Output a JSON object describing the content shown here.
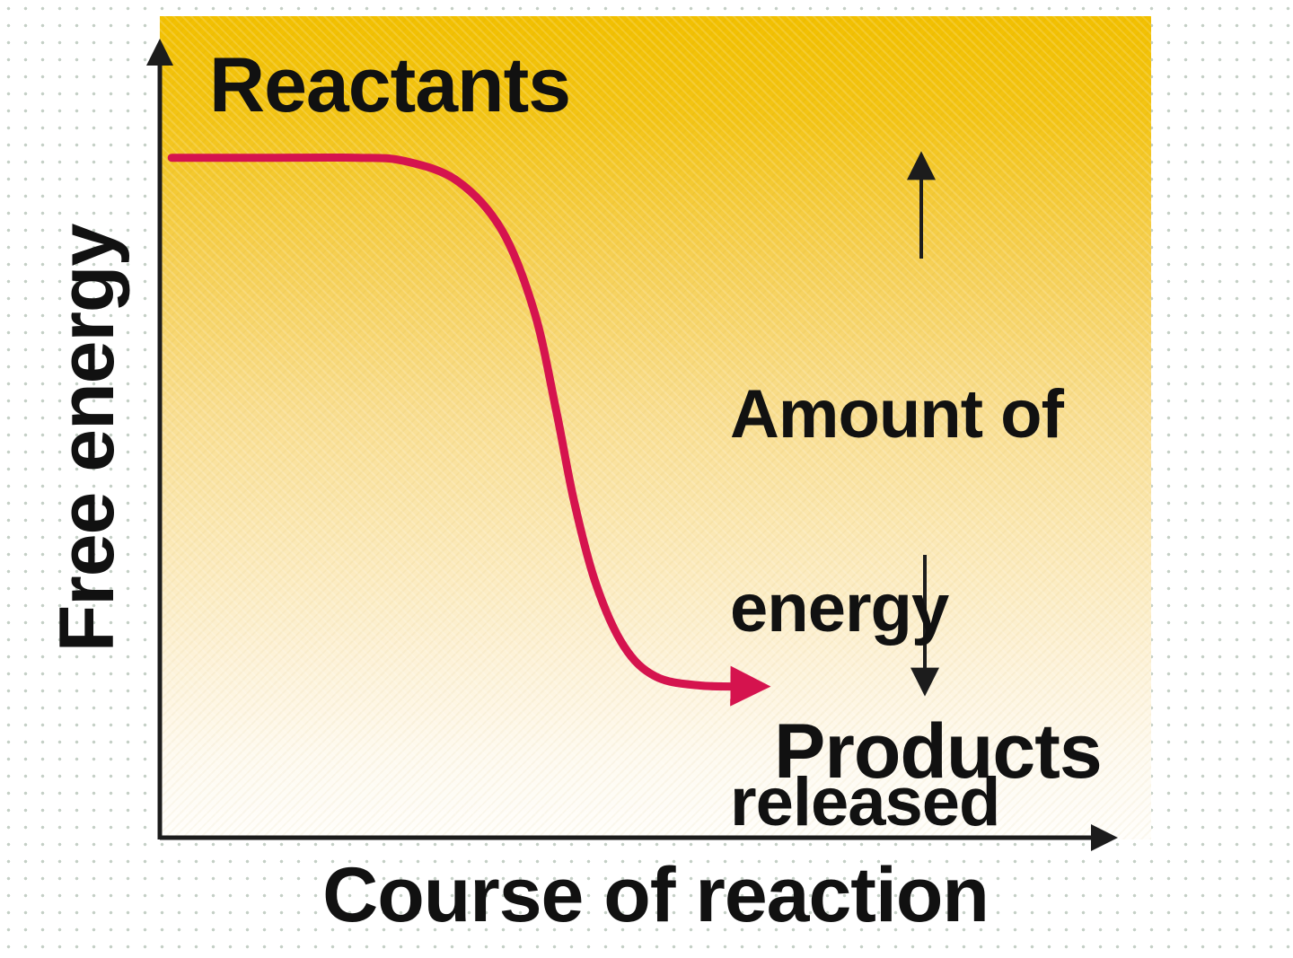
{
  "figure": {
    "labels": {
      "reactants": "Reactants",
      "products": "Products",
      "x_axis": "Course of reaction",
      "y_axis": "Free energy"
    },
    "annotation": {
      "line1": "Amount of",
      "line2": "energy",
      "line3": "released"
    }
  },
  "colors": {
    "curve": "#d5134e",
    "axis": "#1c1c1c",
    "gradient_top": "#f2c000",
    "gradient_bottom": "#fffefb"
  },
  "chart_data": {
    "type": "line",
    "title": "",
    "xlabel": "Course of reaction",
    "ylabel": "Free energy",
    "x_ticks": [],
    "y_ticks": [],
    "grid": false,
    "legend": false,
    "annotations": [
      "Reactants",
      "Products",
      "Amount of energy released"
    ],
    "reactants_level": 0.83,
    "products_level": 0.19,
    "series": [
      {
        "name": "free-energy-curve",
        "color": "#d5134e",
        "points": [
          [
            0.012,
            0.828
          ],
          [
            0.1,
            0.828
          ],
          [
            0.2,
            0.828
          ],
          [
            0.247,
            0.824
          ],
          [
            0.3,
            0.8
          ],
          [
            0.345,
            0.74
          ],
          [
            0.378,
            0.64
          ],
          [
            0.4,
            0.52
          ],
          [
            0.418,
            0.41
          ],
          [
            0.44,
            0.31
          ],
          [
            0.468,
            0.235
          ],
          [
            0.5,
            0.198
          ],
          [
            0.545,
            0.187
          ],
          [
            0.6,
            0.186
          ]
        ]
      }
    ]
  }
}
